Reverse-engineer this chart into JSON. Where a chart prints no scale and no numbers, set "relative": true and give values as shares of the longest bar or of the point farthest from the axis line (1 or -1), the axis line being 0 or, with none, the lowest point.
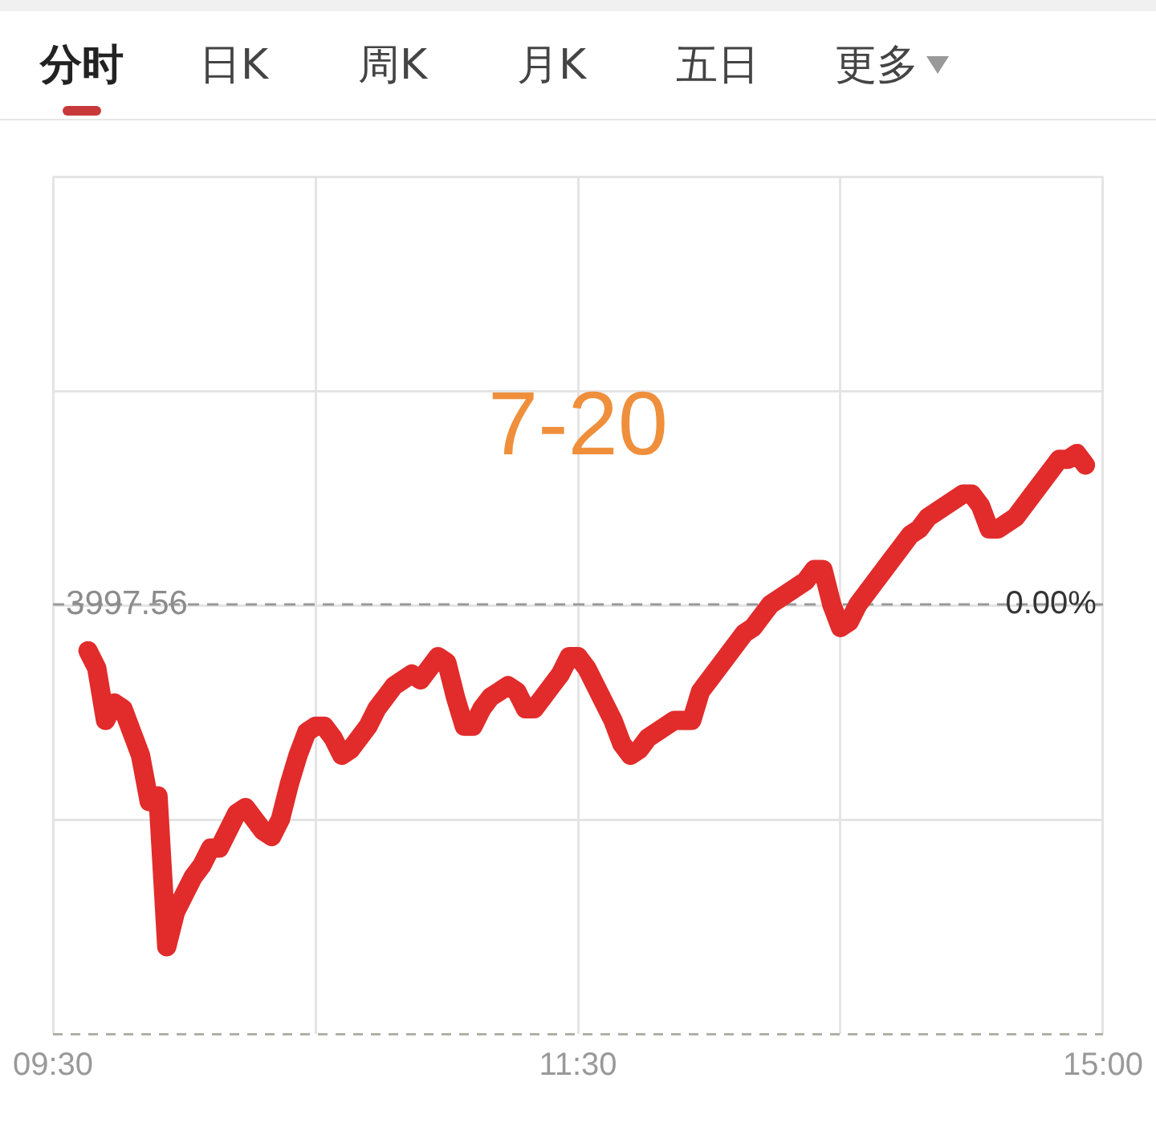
{
  "chart_data": {
    "type": "line",
    "title": "7-20",
    "annotations": [
      "分时",
      "日K",
      "周K",
      "月K",
      "五日",
      "更多",
      {
        "text": "3997.56",
        "x": "09:30",
        "y": 0.74
      },
      {
        "text": "0.00%",
        "x": "15:00",
        "y": 0.74
      }
    ],
    "relative": true,
    "categories": [
      "09:30",
      null,
      null,
      null,
      null,
      null,
      null,
      null,
      null,
      null,
      null,
      null,
      null,
      null,
      null,
      null,
      null,
      null,
      null,
      null,
      null,
      null,
      null,
      null,
      null,
      null,
      null,
      null,
      null,
      null,
      null,
      null,
      null,
      null,
      null,
      null,
      null,
      null,
      null,
      null,
      null,
      null,
      null,
      null,
      null,
      null,
      null,
      null,
      null,
      null,
      null,
      null,
      null,
      null,
      null,
      null,
      null,
      null,
      null,
      null,
      "11:30",
      null,
      null,
      null,
      null,
      null,
      null,
      null,
      null,
      null,
      null,
      null,
      null,
      null,
      null,
      null,
      null,
      null,
      null,
      null,
      null,
      null,
      null,
      null,
      null,
      null,
      null,
      null,
      null,
      null,
      null,
      null,
      null,
      null,
      null,
      null,
      null,
      null,
      null,
      null,
      null,
      null,
      null,
      null,
      null,
      null,
      null,
      null,
      null,
      null,
      null,
      null,
      null,
      null,
      null,
      null,
      null,
      null,
      null,
      null,
      "15:00"
    ],
    "values": [
      null,
      null,
      null,
      null,
      0.66,
      0.63,
      0.54,
      0.57,
      0.56,
      0.52,
      0.48,
      0.4,
      0.41,
      0.15,
      0.21,
      0.24,
      0.27,
      0.29,
      0.32,
      0.32,
      0.35,
      0.38,
      0.39,
      0.37,
      0.35,
      0.34,
      0.37,
      0.43,
      0.48,
      0.52,
      0.53,
      0.53,
      0.51,
      0.48,
      0.49,
      0.51,
      0.53,
      0.56,
      0.58,
      0.6,
      0.61,
      0.62,
      0.61,
      0.63,
      0.65,
      0.64,
      0.58,
      0.53,
      0.53,
      0.56,
      0.58,
      0.59,
      0.6,
      0.59,
      0.56,
      0.56,
      0.58,
      0.6,
      0.62,
      0.65,
      0.65,
      0.63,
      0.6,
      0.57,
      0.54,
      0.5,
      0.48,
      0.49,
      0.51,
      0.52,
      0.53,
      0.54,
      0.54,
      0.54,
      0.59,
      0.61,
      0.63,
      0.65,
      0.67,
      0.69,
      0.7,
      0.72,
      0.74,
      0.75,
      0.76,
      0.77,
      0.78,
      0.8,
      0.8,
      0.74,
      0.7,
      0.71,
      0.74,
      0.76,
      0.78,
      0.8,
      0.82,
      0.84,
      0.86,
      0.87,
      0.89,
      0.9,
      0.91,
      0.92,
      0.93,
      0.93,
      0.91,
      0.87,
      0.87,
      0.88,
      0.89,
      0.91,
      0.93,
      0.95,
      0.97,
      0.99,
      0.99,
      1,
      0.98,
      null,
      null
    ],
    "color": "#e22b2b",
    "ref_lines": [
      {
        "axis": "y",
        "value": 0.74,
        "color": "#999999",
        "line_style": "dashed"
      }
    ],
    "grid": true,
    "tick_labels": "x"
  }
}
